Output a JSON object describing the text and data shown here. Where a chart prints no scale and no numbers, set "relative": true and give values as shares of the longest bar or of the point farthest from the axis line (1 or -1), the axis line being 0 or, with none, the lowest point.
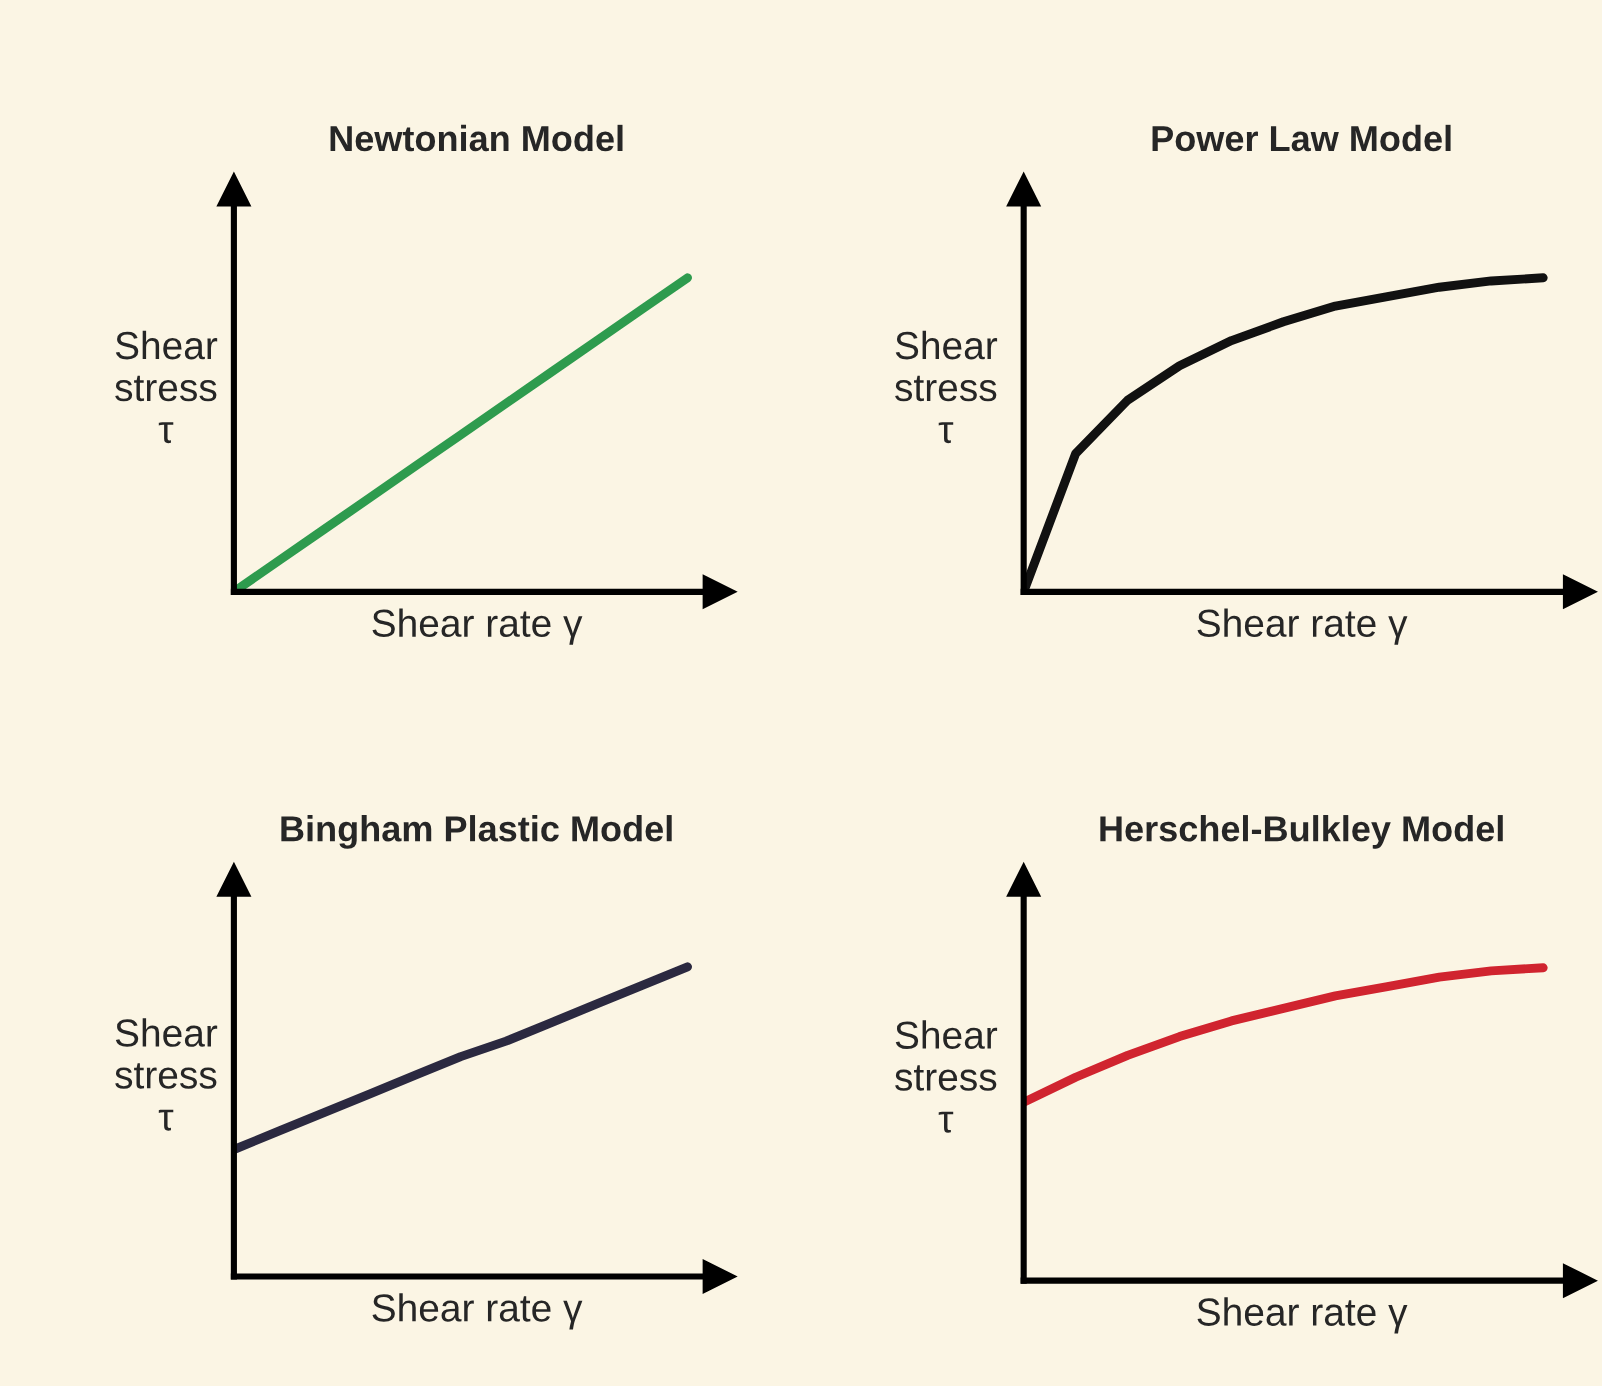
{
  "chart_data": [
    {
      "type": "line",
      "title": "Newtonian Model",
      "xlabel": "Shear rate γ",
      "ylabel": "Shear\nstress\nτ",
      "relative": true,
      "tick_labels": false,
      "categories": [
        null,
        null,
        null,
        null,
        null,
        null,
        null,
        null,
        null,
        null,
        null
      ],
      "series": [
        {
          "color": "#2e9b4e",
          "values": [
            0,
            0.1,
            0.2,
            0.3,
            0.4,
            0.5,
            0.6,
            0.7,
            0.8,
            0.9,
            1
          ]
        }
      ]
    },
    {
      "type": "line",
      "title": "Power Law Model",
      "xlabel": "Shear rate γ",
      "ylabel": "Shear\nstress\nτ",
      "relative": true,
      "tick_labels": false,
      "categories": [
        null,
        null,
        null,
        null,
        null,
        null,
        null,
        null,
        null,
        null,
        null
      ],
      "series": [
        {
          "color": "#111111",
          "values": [
            0,
            0.44,
            0.61,
            0.72,
            0.8,
            0.86,
            0.91,
            0.94,
            0.97,
            0.99,
            1
          ]
        }
      ]
    },
    {
      "type": "line",
      "title": "Bingham Plastic Model",
      "xlabel": "Shear rate γ",
      "ylabel": "Shear\nstress\nτ",
      "relative": true,
      "tick_labels": false,
      "categories": [
        null,
        null,
        null,
        null,
        null,
        null,
        null,
        null,
        null,
        null,
        null
      ],
      "series": [
        {
          "color": "#2b2940",
          "values": [
            0.41,
            0.47,
            0.53,
            0.59,
            0.65,
            0.71,
            0.76,
            0.82,
            0.88,
            0.94,
            1
          ]
        }
      ]
    },
    {
      "type": "line",
      "title": "Herschel-Bulkley Model",
      "xlabel": "Shear rate γ",
      "ylabel": "Shear\nstress\nτ",
      "relative": true,
      "tick_labels": false,
      "categories": [
        null,
        null,
        null,
        null,
        null,
        null,
        null,
        null,
        null,
        null,
        null
      ],
      "series": [
        {
          "color": "#d0242f",
          "values": [
            0.57,
            0.65,
            0.72,
            0.78,
            0.83,
            0.87,
            0.91,
            0.94,
            0.97,
            0.99,
            1
          ]
        }
      ]
    }
  ]
}
